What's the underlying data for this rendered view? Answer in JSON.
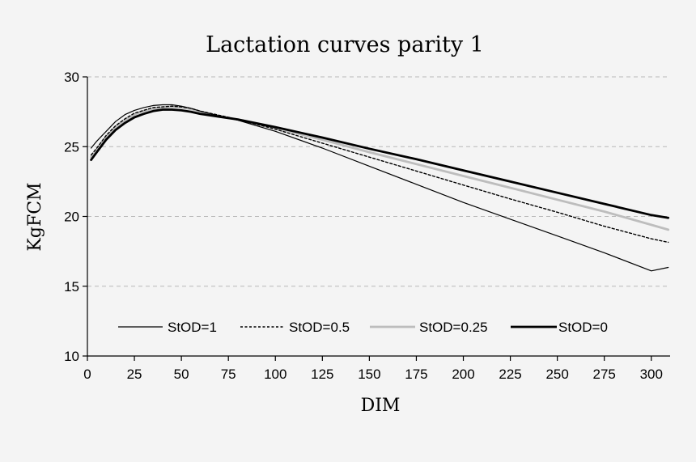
{
  "chart_data": {
    "type": "line",
    "title": "Lactation curves parity 1",
    "xlabel": "DIM",
    "ylabel": "KgFCM",
    "xlim": [
      0,
      310
    ],
    "ylim": [
      10,
      30
    ],
    "xticks": [
      "0",
      "25",
      "50",
      "75",
      "100",
      "125",
      "150",
      "175",
      "200",
      "225",
      "250",
      "275",
      "300"
    ],
    "yticks": [
      "10",
      "15",
      "20",
      "25",
      "30"
    ],
    "grid": "horizontal dashed",
    "legend_position": "bottom-inside",
    "x": [
      2,
      5,
      10,
      15,
      20,
      25,
      30,
      35,
      40,
      45,
      50,
      55,
      60,
      70,
      80,
      100,
      125,
      150,
      175,
      200,
      225,
      250,
      275,
      300,
      309
    ],
    "series": [
      {
        "name": "StOD=1",
        "color": "#000000",
        "style": "thin-solid",
        "values": [
          24.9,
          25.4,
          26.1,
          26.8,
          27.3,
          27.6,
          27.8,
          27.95,
          28.0,
          28.0,
          27.9,
          27.75,
          27.55,
          27.2,
          26.9,
          26.1,
          24.9,
          23.6,
          22.3,
          21.0,
          19.8,
          18.6,
          17.4,
          16.1,
          16.35
        ]
      },
      {
        "name": "StOD=0.5",
        "color": "#000000",
        "style": "dotted",
        "values": [
          24.4,
          24.9,
          25.8,
          26.5,
          27.0,
          27.4,
          27.6,
          27.8,
          27.85,
          27.9,
          27.85,
          27.75,
          27.55,
          27.25,
          26.95,
          26.25,
          25.25,
          24.25,
          23.25,
          22.25,
          21.25,
          20.3,
          19.3,
          18.4,
          18.15
        ]
      },
      {
        "name": "StOD=0.25",
        "color": "#bdbdbd",
        "style": "thick-solid",
        "values": [
          24.25,
          24.8,
          25.7,
          26.4,
          26.9,
          27.3,
          27.55,
          27.7,
          27.8,
          27.85,
          27.8,
          27.7,
          27.5,
          27.2,
          26.95,
          26.35,
          25.5,
          24.6,
          23.75,
          22.9,
          22.05,
          21.2,
          20.35,
          19.4,
          19.05
        ]
      },
      {
        "name": "StOD=0",
        "color": "#000000",
        "style": "thick-solid",
        "values": [
          24.05,
          24.6,
          25.5,
          26.2,
          26.7,
          27.1,
          27.35,
          27.55,
          27.65,
          27.65,
          27.6,
          27.5,
          27.35,
          27.15,
          26.95,
          26.4,
          25.65,
          24.85,
          24.1,
          23.3,
          22.5,
          21.7,
          20.9,
          20.1,
          19.9
        ]
      }
    ]
  }
}
